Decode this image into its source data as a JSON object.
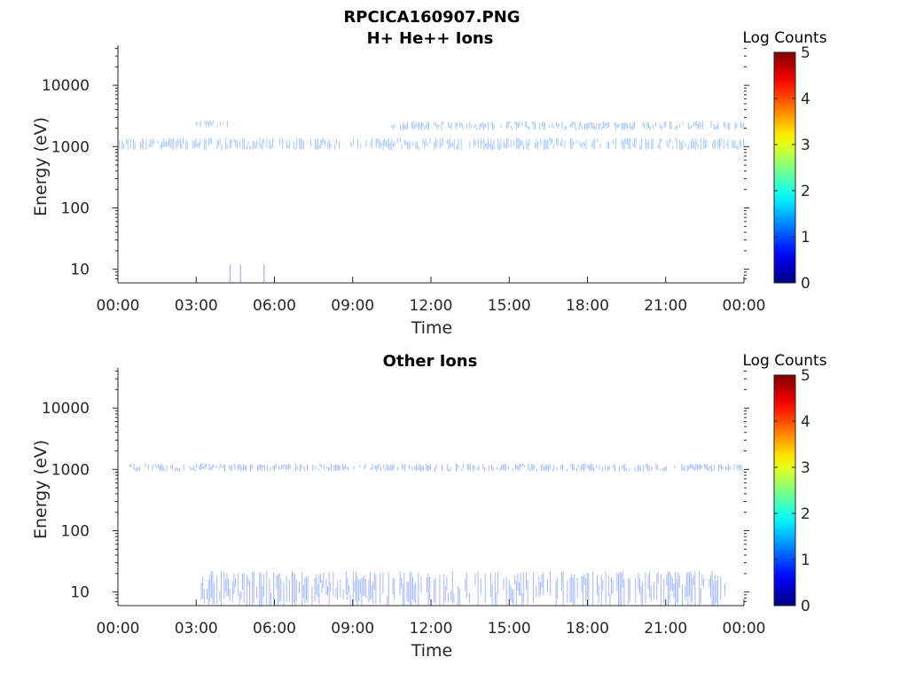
{
  "figure_title": "RPCICA160907.PNG",
  "chart_data": [
    {
      "type": "heatmap",
      "title": "H+ He++ Ions",
      "xlabel": "Time",
      "ylabel": "Energy (eV)",
      "x_tick_labels": [
        "00:00",
        "03:00",
        "06:00",
        "09:00",
        "12:00",
        "15:00",
        "18:00",
        "21:00",
        "00:00"
      ],
      "x_range_hours": [
        0,
        24
      ],
      "y_scale": "log",
      "y_range": [
        6,
        45000
      ],
      "y_ticks": [
        10,
        100,
        1000,
        10000
      ],
      "y_tick_labels": [
        "10",
        "100",
        "1000",
        "10000"
      ],
      "colorbar": {
        "label": "Log Counts",
        "range": [
          0,
          5
        ],
        "ticks": [
          "0",
          "1",
          "2",
          "3",
          "4",
          "5"
        ],
        "colormap": "jet"
      },
      "bands": [
        {
          "hours": [
            0.0,
            24.0
          ],
          "energy_eV": [
            900,
            1400
          ],
          "log_counts": 1.1
        },
        {
          "hours": [
            3.0,
            4.3
          ],
          "energy_eV": [
            2100,
            2700
          ],
          "log_counts": 1.0
        },
        {
          "hours": [
            10.5,
            24.0
          ],
          "energy_eV": [
            1900,
            2600
          ],
          "log_counts": 1.0
        }
      ],
      "features": [
        {
          "hour": 4.3,
          "energy_eV": [
            6,
            12
          ],
          "log_counts": 0.8
        },
        {
          "hour": 4.7,
          "energy_eV": [
            6,
            12
          ],
          "log_counts": 0.8
        },
        {
          "hour": 5.6,
          "energy_eV": [
            6,
            12
          ],
          "log_counts": 0.8
        }
      ]
    },
    {
      "type": "heatmap",
      "title": "Other Ions",
      "xlabel": "Time",
      "ylabel": "Energy (eV)",
      "x_tick_labels": [
        "00:00",
        "03:00",
        "06:00",
        "09:00",
        "12:00",
        "15:00",
        "18:00",
        "21:00",
        "00:00"
      ],
      "x_range_hours": [
        0,
        24
      ],
      "y_scale": "log",
      "y_range": [
        6,
        45000
      ],
      "y_ticks": [
        10,
        100,
        1000,
        10000
      ],
      "y_tick_labels": [
        "10",
        "100",
        "1000",
        "10000"
      ],
      "colorbar": {
        "label": "Log Counts",
        "range": [
          0,
          5
        ],
        "ticks": [
          "0",
          "1",
          "2",
          "3",
          "4",
          "5"
        ],
        "colormap": "jet"
      },
      "bands": [
        {
          "hours": [
            0.4,
            24.0
          ],
          "energy_eV": [
            950,
            1250
          ],
          "log_counts": 0.9
        },
        {
          "hours": [
            3.2,
            23.3
          ],
          "energy_eV": [
            6,
            22
          ],
          "log_counts": 0.9
        }
      ],
      "features": []
    }
  ]
}
